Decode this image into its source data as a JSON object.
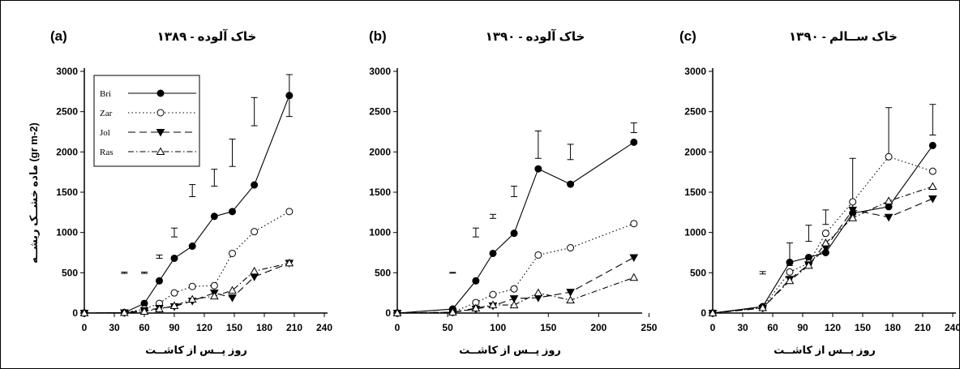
{
  "figure": {
    "y_axis_label": "ماده خشــک ریشــه (gr m-2)",
    "x_axis_label": "روز پــس از کاشــت"
  },
  "legend": {
    "position": "top-left of panel (a)",
    "entries": [
      {
        "label": "Bri",
        "marker": "filled-circle",
        "dash": "solid"
      },
      {
        "label": "Zar",
        "marker": "open-circle",
        "dash": "dotted"
      },
      {
        "label": "Jol",
        "marker": "filled-triangle-down",
        "dash": "dashed"
      },
      {
        "label": "Ras",
        "marker": "open-triangle-up",
        "dash": "dash-dot"
      }
    ]
  },
  "colors": {
    "lines": "#000000",
    "background": "#ffffff",
    "border": "#000000"
  },
  "chart_data": [
    {
      "type": "line",
      "panel": "(a)",
      "title": "خاک آلوده - ۱۳۸۹",
      "xlabel": "روز پــس از کاشــت",
      "ylabel": "ماده خشــک ریشــه (gr m-2)",
      "xlim": [
        0,
        240
      ],
      "ylim": [
        0,
        3000
      ],
      "xticks": [
        0,
        30,
        60,
        90,
        120,
        150,
        180,
        210,
        240
      ],
      "yticks": [
        0,
        500,
        1000,
        1500,
        2000,
        2500,
        3000
      ],
      "grid": false,
      "series": [
        {
          "name": "Bri",
          "x": [
            0,
            40,
            60,
            75,
            90,
            108,
            130,
            148,
            170,
            205
          ],
          "y": [
            0,
            5,
            120,
            400,
            680,
            830,
            1200,
            1260,
            1590,
            2700
          ]
        },
        {
          "name": "Zar",
          "x": [
            0,
            40,
            60,
            75,
            90,
            108,
            130,
            148,
            170,
            205
          ],
          "y": [
            0,
            5,
            50,
            120,
            250,
            330,
            340,
            740,
            1010,
            1260
          ]
        },
        {
          "name": "Jol",
          "x": [
            0,
            40,
            60,
            75,
            90,
            108,
            130,
            148,
            170,
            205
          ],
          "y": [
            0,
            5,
            30,
            60,
            80,
            150,
            250,
            190,
            450,
            620
          ]
        },
        {
          "name": "Ras",
          "x": [
            0,
            40,
            60,
            75,
            90,
            108,
            130,
            148,
            170,
            205
          ],
          "y": [
            0,
            5,
            20,
            50,
            90,
            170,
            210,
            280,
            520,
            620
          ]
        }
      ],
      "error_bars": [
        {
          "x": 40,
          "center": 500,
          "half": 8
        },
        {
          "x": 60,
          "center": 500,
          "half": 8
        },
        {
          "x": 75,
          "center": 700,
          "half": 20
        },
        {
          "x": 90,
          "center": 1000,
          "half": 55
        },
        {
          "x": 108,
          "center": 1520,
          "half": 75
        },
        {
          "x": 130,
          "center": 1680,
          "half": 105
        },
        {
          "x": 148,
          "center": 1990,
          "half": 170
        },
        {
          "x": 170,
          "center": 2500,
          "half": 175
        },
        {
          "x": 205,
          "center": 2700,
          "half": 260
        }
      ]
    },
    {
      "type": "line",
      "panel": "(b)",
      "title": "خاک آلوده - ۱۳۹۰",
      "xlabel": "روز پــس از کاشــت",
      "xlim": [
        0,
        240
      ],
      "ylim": [
        0,
        3000
      ],
      "xticks": [
        0,
        50,
        100,
        150,
        200,
        250
      ],
      "yticks": [
        0,
        500,
        1000,
        1500,
        2000,
        2500,
        3000
      ],
      "grid": false,
      "series": [
        {
          "name": "Bri",
          "x": [
            0,
            55,
            78,
            95,
            116,
            140,
            172,
            235
          ],
          "y": [
            0,
            50,
            400,
            740,
            990,
            1790,
            1600,
            2120
          ]
        },
        {
          "name": "Zar",
          "x": [
            0,
            55,
            78,
            95,
            116,
            140,
            172,
            235
          ],
          "y": [
            0,
            10,
            130,
            230,
            300,
            720,
            810,
            1110
          ]
        },
        {
          "name": "Jol",
          "x": [
            0,
            55,
            78,
            95,
            116,
            140,
            172,
            235
          ],
          "y": [
            0,
            10,
            50,
            90,
            180,
            190,
            260,
            690
          ]
        },
        {
          "name": "Ras",
          "x": [
            0,
            55,
            78,
            95,
            116,
            140,
            172,
            235
          ],
          "y": [
            0,
            10,
            60,
            100,
            100,
            250,
            160,
            440
          ]
        }
      ],
      "error_bars": [
        {
          "x": 55,
          "center": 500,
          "half": 5
        },
        {
          "x": 78,
          "center": 1000,
          "half": 55
        },
        {
          "x": 95,
          "center": 1200,
          "half": 25
        },
        {
          "x": 116,
          "center": 1510,
          "half": 65
        },
        {
          "x": 140,
          "center": 2090,
          "half": 170
        },
        {
          "x": 172,
          "center": 2000,
          "half": 95
        },
        {
          "x": 235,
          "center": 2300,
          "half": 60
        }
      ]
    },
    {
      "type": "line",
      "panel": "(c)",
      "title": "خاک ســالم - ۱۳۹۰",
      "xlabel": "روز پــس از کاشــت",
      "xlim": [
        0,
        240
      ],
      "ylim": [
        0,
        3000
      ],
      "xticks": [
        0,
        30,
        60,
        90,
        120,
        150,
        180,
        210,
        240
      ],
      "yticks": [
        0,
        500,
        1000,
        1500,
        2000,
        2500,
        3000
      ],
      "grid": false,
      "series": [
        {
          "name": "Bri",
          "x": [
            0,
            50,
            77,
            96,
            113,
            140,
            176,
            220
          ],
          "y": [
            0,
            80,
            630,
            690,
            750,
            1240,
            1320,
            2080
          ]
        },
        {
          "name": "Zar",
          "x": [
            0,
            50,
            77,
            96,
            113,
            140,
            176,
            220
          ],
          "y": [
            0,
            70,
            510,
            620,
            990,
            1380,
            1940,
            1760
          ]
        },
        {
          "name": "Jol",
          "x": [
            0,
            50,
            77,
            96,
            113,
            140,
            176,
            220
          ],
          "y": [
            0,
            60,
            420,
            600,
            810,
            1280,
            1190,
            1420
          ]
        },
        {
          "name": "Ras",
          "x": [
            0,
            50,
            77,
            96,
            113,
            140,
            176,
            220
          ],
          "y": [
            0,
            65,
            400,
            590,
            870,
            1180,
            1390,
            1570
          ]
        }
      ],
      "error_bars": [
        {
          "x": 50,
          "center": 500,
          "half": 15
        },
        {
          "x": 77,
          "center": 730,
          "half": 140
        },
        {
          "x": 96,
          "center": 990,
          "half": 100
        },
        {
          "x": 113,
          "center": 1190,
          "half": 90
        },
        {
          "x": 140,
          "center": 1590,
          "half": 330
        },
        {
          "x": 176,
          "center": 2240,
          "half": 310
        },
        {
          "x": 220,
          "center": 2400,
          "half": 190
        }
      ]
    }
  ]
}
